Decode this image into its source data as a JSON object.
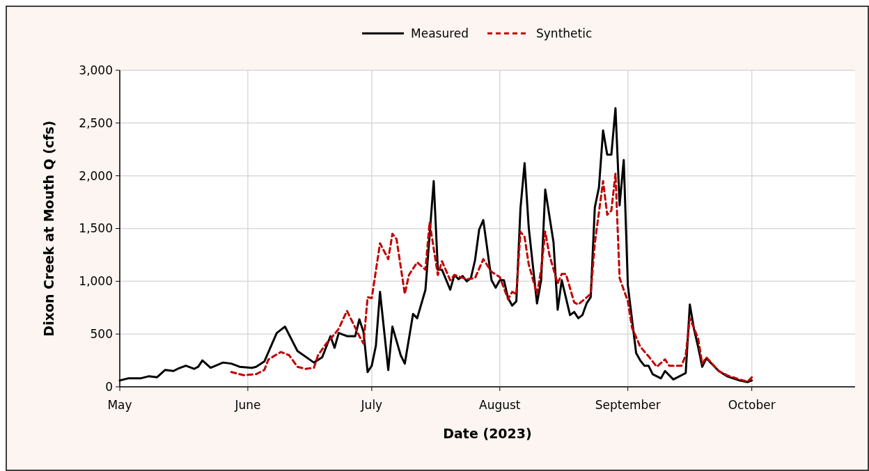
{
  "chart_data": {
    "type": "line",
    "xlabel": "Date (2023)",
    "ylabel": "Dixon Creek at Mouth Q (cfs)",
    "legend": "top",
    "grid": true,
    "marker": "none",
    "xlim": [
      "2023-05-01",
      "2023-10-26"
    ],
    "xticks": [
      {
        "value": "2023-05-01",
        "label": "May"
      },
      {
        "value": "2023-06-01",
        "label": "June"
      },
      {
        "value": "2023-07-01",
        "label": "July"
      },
      {
        "value": "2023-08-01",
        "label": "August"
      },
      {
        "value": "2023-09-01",
        "label": "September"
      },
      {
        "value": "2023-10-01",
        "label": "October"
      }
    ],
    "ylim": [
      0,
      3000
    ],
    "yticks": [
      0,
      500,
      {
        "value": 1000,
        "label": "1,000"
      },
      {
        "value": 1500,
        "label": "1,500"
      },
      {
        "value": 2000,
        "label": "2,000"
      },
      {
        "value": 2500,
        "label": "2,500"
      },
      {
        "value": 3000,
        "label": "3,000"
      }
    ],
    "series": [
      {
        "name": "Measured",
        "color": "#000000",
        "line_style": "solid",
        "x": [
          "2023-05-01",
          "2023-05-03",
          "2023-05-06",
          "2023-05-08",
          "2023-05-10",
          "2023-05-12",
          "2023-05-14",
          "2023-05-15",
          "2023-05-17",
          "2023-05-19",
          "2023-05-20",
          "2023-05-21",
          "2023-05-23",
          "2023-05-26",
          "2023-05-28",
          "2023-05-30",
          "2023-06-02",
          "2023-06-03",
          "2023-06-05",
          "2023-06-08",
          "2023-06-10",
          "2023-06-13",
          "2023-06-17",
          "2023-06-19",
          "2023-06-21",
          "2023-06-22",
          "2023-06-23",
          "2023-06-25",
          "2023-06-27",
          "2023-06-28",
          "2023-06-29",
          "2023-06-30",
          "2023-07-01",
          "2023-07-02",
          "2023-07-03",
          "2023-07-05",
          "2023-07-06",
          "2023-07-08",
          "2023-07-09",
          "2023-07-11",
          "2023-07-12",
          "2023-07-14",
          "2023-07-16",
          "2023-07-17",
          "2023-07-18",
          "2023-07-20",
          "2023-07-21",
          "2023-07-22",
          "2023-07-23",
          "2023-07-24",
          "2023-07-25",
          "2023-07-26",
          "2023-07-27",
          "2023-07-28",
          "2023-07-30",
          "2023-07-31",
          "2023-08-01",
          "2023-08-02",
          "2023-08-03",
          "2023-08-04",
          "2023-08-05",
          "2023-08-06",
          "2023-08-07",
          "2023-08-08",
          "2023-08-10",
          "2023-08-11",
          "2023-08-12",
          "2023-08-13",
          "2023-08-14",
          "2023-08-15",
          "2023-08-16",
          "2023-08-18",
          "2023-08-19",
          "2023-08-20",
          "2023-08-21",
          "2023-08-22",
          "2023-08-23",
          "2023-08-24",
          "2023-08-25",
          "2023-08-26",
          "2023-08-27",
          "2023-08-28",
          "2023-08-29",
          "2023-08-30",
          "2023-08-31",
          "2023-09-01",
          "2023-09-03",
          "2023-09-04",
          "2023-09-05",
          "2023-09-06",
          "2023-09-07",
          "2023-09-09",
          "2023-09-10",
          "2023-09-12",
          "2023-09-13",
          "2023-09-15",
          "2023-09-16",
          "2023-09-17",
          "2023-09-18",
          "2023-09-19",
          "2023-09-20",
          "2023-09-23",
          "2023-09-25",
          "2023-09-28",
          "2023-09-30",
          "2023-10-01"
        ],
        "values": [
          60,
          80,
          80,
          100,
          90,
          160,
          150,
          170,
          200,
          170,
          190,
          250,
          180,
          230,
          220,
          190,
          180,
          190,
          240,
          510,
          570,
          340,
          230,
          280,
          480,
          370,
          510,
          480,
          480,
          640,
          520,
          140,
          200,
          390,
          900,
          160,
          570,
          300,
          220,
          690,
          650,
          920,
          1950,
          1110,
          1110,
          920,
          1060,
          1020,
          1050,
          1000,
          1030,
          1200,
          1490,
          1580,
          1010,
          940,
          1010,
          1010,
          840,
          770,
          810,
          1690,
          2120,
          1510,
          790,
          1010,
          1870,
          1620,
          1370,
          730,
          1010,
          680,
          710,
          650,
          680,
          790,
          850,
          1700,
          1890,
          2430,
          2200,
          2200,
          2640,
          1720,
          2150,
          960,
          320,
          250,
          200,
          200,
          120,
          80,
          150,
          70,
          90,
          130,
          780,
          550,
          380,
          190,
          270,
          150,
          100,
          60,
          45,
          60
        ]
      },
      {
        "name": "Synthetic",
        "color": "#c00000",
        "line_style": "dashed",
        "x": [
          "2023-05-28",
          "2023-05-31",
          "2023-06-03",
          "2023-06-05",
          "2023-06-06",
          "2023-06-09",
          "2023-06-11",
          "2023-06-13",
          "2023-06-15",
          "2023-06-17",
          "2023-06-18",
          "2023-06-20",
          "2023-06-22",
          "2023-06-23",
          "2023-06-25",
          "2023-06-28",
          "2023-06-29",
          "2023-06-30",
          "2023-07-01",
          "2023-07-03",
          "2023-07-05",
          "2023-07-06",
          "2023-07-07",
          "2023-07-09",
          "2023-07-10",
          "2023-07-12",
          "2023-07-14",
          "2023-07-15",
          "2023-07-17",
          "2023-07-18",
          "2023-07-20",
          "2023-07-21",
          "2023-07-24",
          "2023-07-26",
          "2023-07-28",
          "2023-07-30",
          "2023-08-01",
          "2023-08-03",
          "2023-08-04",
          "2023-08-05",
          "2023-08-06",
          "2023-08-07",
          "2023-08-08",
          "2023-08-10",
          "2023-08-11",
          "2023-08-12",
          "2023-08-13",
          "2023-08-15",
          "2023-08-16",
          "2023-08-17",
          "2023-08-19",
          "2023-08-20",
          "2023-08-23",
          "2023-08-24",
          "2023-08-26",
          "2023-08-27",
          "2023-08-28",
          "2023-08-29",
          "2023-08-30",
          "2023-09-01",
          "2023-09-02",
          "2023-09-04",
          "2023-09-06",
          "2023-09-08",
          "2023-09-10",
          "2023-09-11",
          "2023-09-14",
          "2023-09-15",
          "2023-09-16",
          "2023-09-18",
          "2023-09-19",
          "2023-09-20",
          "2023-09-23",
          "2023-09-25",
          "2023-09-28",
          "2023-09-30",
          "2023-10-01"
        ],
        "values": [
          140,
          110,
          120,
          160,
          260,
          330,
          300,
          190,
          170,
          180,
          300,
          410,
          500,
          550,
          720,
          480,
          410,
          850,
          840,
          1360,
          1210,
          1450,
          1400,
          880,
          1060,
          1180,
          1110,
          1560,
          1060,
          1190,
          1010,
          1060,
          1020,
          1030,
          1210,
          1090,
          1040,
          830,
          900,
          880,
          1470,
          1420,
          1160,
          880,
          1110,
          1470,
          1250,
          980,
          1070,
          1070,
          800,
          780,
          880,
          1360,
          1950,
          1630,
          1670,
          2020,
          1030,
          810,
          560,
          380,
          290,
          190,
          260,
          200,
          200,
          300,
          650,
          460,
          220,
          280,
          150,
          110,
          70,
          50,
          90
        ]
      }
    ]
  }
}
